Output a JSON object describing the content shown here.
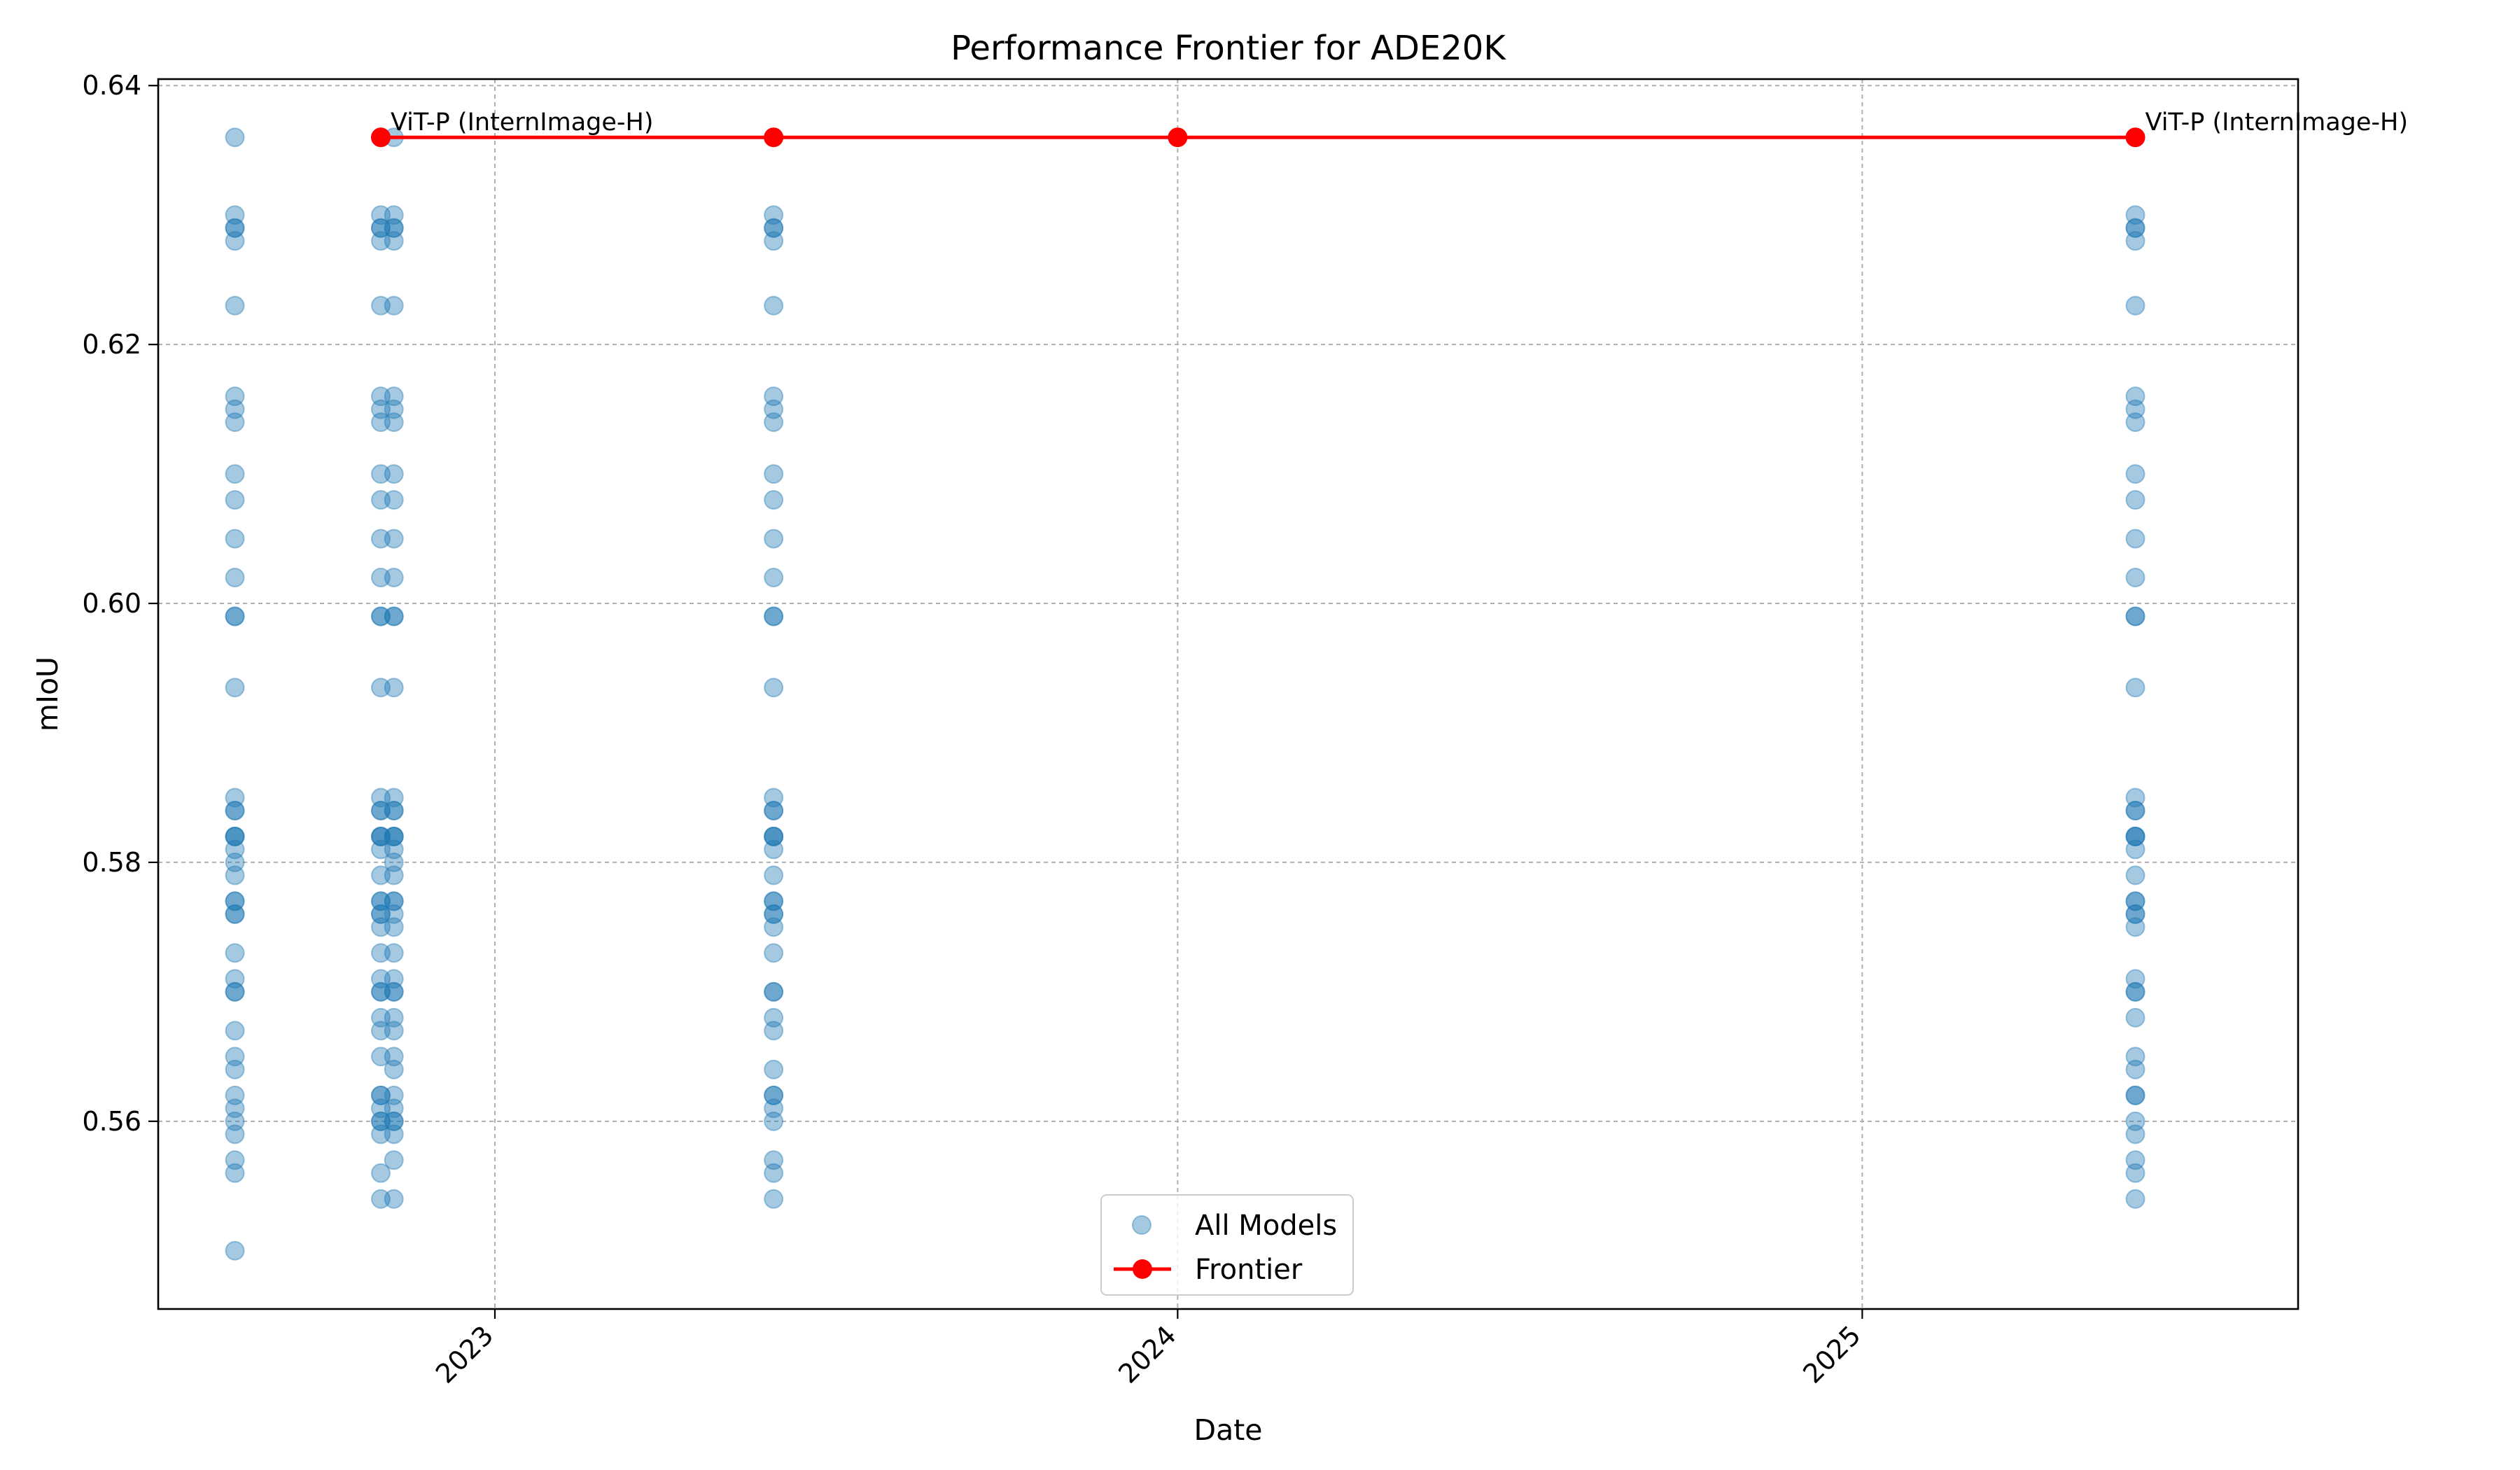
{
  "chart_data": {
    "type": "scatter",
    "title": "Performance Frontier for ADE20K",
    "xlabel": "Date",
    "ylabel": "mIoU",
    "xlim": [
      "2022-07-05",
      "2025-08-22"
    ],
    "ylim": [
      0.5455,
      0.6405
    ],
    "x_ticks": [
      "2023",
      "2024",
      "2025"
    ],
    "y_ticks": [
      "0.56",
      "0.58",
      "0.60",
      "0.62",
      "0.64"
    ],
    "grid": true,
    "legend_position": "bottom-center",
    "legend": [
      "All Models",
      "Frontier"
    ],
    "colors": {
      "all_models": "#1f77b4",
      "frontier": "#ff0000"
    },
    "series": [
      {
        "name": "All Models",
        "kind": "scatter",
        "points": [
          {
            "x": "2022-08-15",
            "y": [
              0.636,
              0.63,
              0.629,
              0.629,
              0.628,
              0.623,
              0.616,
              0.615,
              0.614,
              0.61,
              0.608,
              0.605,
              0.602,
              0.599,
              0.599,
              0.5935,
              0.585,
              0.584,
              0.584,
              0.582,
              0.582,
              0.582,
              0.581,
              0.58,
              0.579,
              0.577,
              0.577,
              0.576,
              0.576,
              0.573,
              0.571,
              0.57,
              0.57,
              0.567,
              0.565,
              0.564,
              0.562,
              0.561,
              0.56,
              0.559,
              0.557,
              0.556,
              0.55
            ]
          },
          {
            "x": "2022-11-01",
            "y": [
              0.636,
              0.63,
              0.629,
              0.629,
              0.628,
              0.623,
              0.616,
              0.615,
              0.614,
              0.61,
              0.608,
              0.605,
              0.602,
              0.599,
              0.599,
              0.5935,
              0.585,
              0.584,
              0.584,
              0.582,
              0.582,
              0.582,
              0.581,
              0.579,
              0.577,
              0.577,
              0.576,
              0.576,
              0.575,
              0.573,
              0.571,
              0.57,
              0.57,
              0.568,
              0.567,
              0.565,
              0.562,
              0.562,
              0.561,
              0.56,
              0.56,
              0.559,
              0.556,
              0.554
            ]
          },
          {
            "x": "2022-11-08",
            "y": [
              0.636,
              0.63,
              0.629,
              0.629,
              0.628,
              0.623,
              0.616,
              0.615,
              0.614,
              0.61,
              0.608,
              0.605,
              0.602,
              0.599,
              0.599,
              0.5935,
              0.585,
              0.584,
              0.584,
              0.582,
              0.582,
              0.582,
              0.581,
              0.58,
              0.579,
              0.577,
              0.577,
              0.576,
              0.575,
              0.573,
              0.571,
              0.57,
              0.57,
              0.568,
              0.567,
              0.565,
              0.564,
              0.562,
              0.561,
              0.56,
              0.56,
              0.559,
              0.557,
              0.554
            ]
          },
          {
            "x": "2023-05-30",
            "y": [
              0.636,
              0.63,
              0.629,
              0.629,
              0.628,
              0.623,
              0.616,
              0.615,
              0.614,
              0.61,
              0.608,
              0.605,
              0.602,
              0.599,
              0.599,
              0.5935,
              0.585,
              0.584,
              0.584,
              0.582,
              0.582,
              0.582,
              0.581,
              0.579,
              0.577,
              0.577,
              0.576,
              0.576,
              0.575,
              0.573,
              0.57,
              0.57,
              0.568,
              0.567,
              0.564,
              0.562,
              0.562,
              0.561,
              0.56,
              0.557,
              0.556,
              0.554
            ]
          },
          {
            "x": "2025-05-27",
            "y": [
              0.636,
              0.63,
              0.629,
              0.629,
              0.628,
              0.623,
              0.616,
              0.615,
              0.614,
              0.61,
              0.608,
              0.605,
              0.602,
              0.599,
              0.599,
              0.5935,
              0.585,
              0.584,
              0.584,
              0.582,
              0.582,
              0.582,
              0.581,
              0.579,
              0.577,
              0.577,
              0.576,
              0.576,
              0.575,
              0.571,
              0.57,
              0.57,
              0.568,
              0.565,
              0.564,
              0.562,
              0.562,
              0.56,
              0.559,
              0.557,
              0.556,
              0.554
            ]
          }
        ]
      },
      {
        "name": "Frontier",
        "kind": "line",
        "x": [
          "2022-11-01",
          "2023-05-30",
          "2024-01-01",
          "2025-05-27"
        ],
        "y": [
          0.636,
          0.636,
          0.636,
          0.636
        ]
      }
    ],
    "annotations": [
      {
        "text": "ViT-P (InternImage-H)",
        "x": "2022-11-01",
        "y": 0.636
      },
      {
        "text": "ViT-P (InternImage-H)",
        "x": "2025-05-27",
        "y": 0.636
      }
    ]
  }
}
